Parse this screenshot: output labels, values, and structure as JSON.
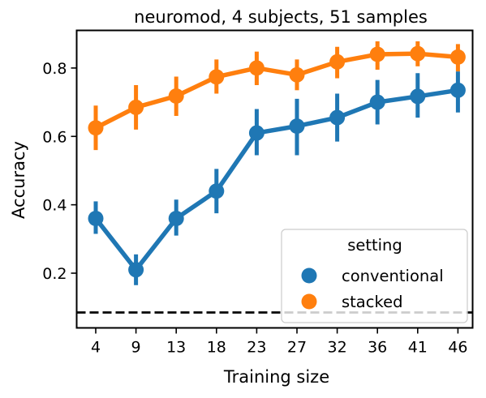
{
  "chart_data": {
    "type": "line",
    "title": "neuromod, 4 subjects, 51 samples",
    "xlabel": "Training size",
    "ylabel": "Accuracy",
    "categories": [
      "4",
      "9",
      "13",
      "18",
      "23",
      "27",
      "32",
      "36",
      "41",
      "46"
    ],
    "ylim": [
      0.04,
      0.91
    ],
    "yticks": [
      "0.2",
      "0.4",
      "0.6",
      "0.8"
    ],
    "grid": false,
    "legend": {
      "title": "setting",
      "position": "bottom-right"
    },
    "series": [
      {
        "name": "conventional",
        "color": "#1f77b4",
        "values": [
          0.36,
          0.21,
          0.36,
          0.44,
          0.61,
          0.63,
          0.655,
          0.7,
          0.717,
          0.735
        ],
        "err_low": [
          0.315,
          0.165,
          0.31,
          0.375,
          0.545,
          0.545,
          0.585,
          0.635,
          0.655,
          0.67
        ],
        "err_high": [
          0.41,
          0.255,
          0.415,
          0.505,
          0.68,
          0.71,
          0.725,
          0.765,
          0.785,
          0.79
        ]
      },
      {
        "name": "stacked",
        "color": "#ff7f0e",
        "values": [
          0.625,
          0.685,
          0.718,
          0.774,
          0.8,
          0.78,
          0.818,
          0.84,
          0.842,
          0.832
        ],
        "err_low": [
          0.56,
          0.62,
          0.66,
          0.725,
          0.75,
          0.735,
          0.77,
          0.795,
          0.805,
          0.79
        ],
        "err_high": [
          0.69,
          0.75,
          0.775,
          0.825,
          0.848,
          0.825,
          0.862,
          0.878,
          0.878,
          0.87
        ]
      }
    ],
    "reference_line": {
      "y": 0.085,
      "style": "dashed",
      "color": "#000000"
    }
  }
}
